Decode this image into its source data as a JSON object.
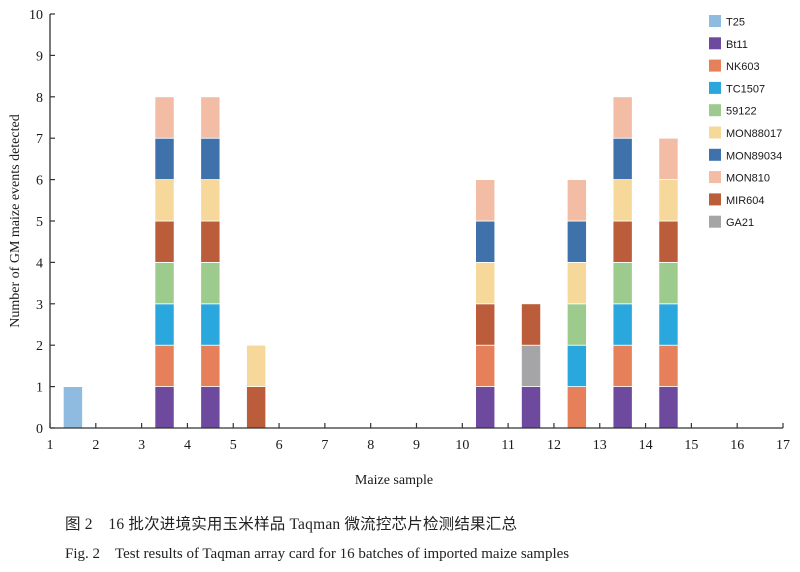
{
  "chart_data": {
    "type": "bar",
    "stacked": true,
    "xlabel": "Maize sample",
    "ylabel": "Number of GM maize events detected",
    "xlim": [
      1,
      17
    ],
    "ylim": [
      0,
      10
    ],
    "x_ticks": [
      "1",
      "2",
      "3",
      "4",
      "5",
      "6",
      "7",
      "8",
      "9",
      "10",
      "11",
      "12",
      "13",
      "14",
      "15",
      "16",
      "17"
    ],
    "y_ticks": [
      "0",
      "1",
      "2",
      "3",
      "4",
      "5",
      "6",
      "7",
      "8",
      "9",
      "10"
    ],
    "categories": [
      "1",
      "2",
      "3",
      "4",
      "5",
      "6",
      "7",
      "8",
      "9",
      "10",
      "11",
      "12",
      "13",
      "14",
      "15",
      "16"
    ],
    "legend_position": "top-right",
    "grid": false,
    "series": [
      {
        "name": "T25",
        "color": "#8fbbe0",
        "values": [
          1,
          0,
          0,
          0,
          0,
          0,
          0,
          0,
          0,
          0,
          0,
          0,
          0,
          0,
          0,
          0
        ]
      },
      {
        "name": "Bt11",
        "color": "#6d4a9e",
        "values": [
          0,
          0,
          1,
          1,
          0,
          0,
          0,
          0,
          0,
          1,
          1,
          0,
          1,
          1,
          0,
          0
        ]
      },
      {
        "name": "NK603",
        "color": "#e5805a",
        "values": [
          0,
          0,
          1,
          1,
          0,
          0,
          0,
          0,
          0,
          1,
          0,
          1,
          1,
          1,
          0,
          0
        ]
      },
      {
        "name": "TC1507",
        "color": "#2aa7dc",
        "values": [
          0,
          0,
          1,
          1,
          0,
          0,
          0,
          0,
          0,
          0,
          0,
          1,
          1,
          1,
          0,
          0
        ]
      },
      {
        "name": "59122",
        "color": "#9dcb8d",
        "values": [
          0,
          0,
          1,
          1,
          0,
          0,
          0,
          0,
          0,
          0,
          0,
          1,
          1,
          1,
          0,
          0
        ]
      },
      {
        "name": "MON88017",
        "color": "#f6d99a",
        "values": [
          0,
          0,
          1,
          1,
          1,
          0,
          0,
          0,
          0,
          1,
          0,
          1,
          1,
          1,
          0,
          0
        ]
      },
      {
        "name": "MON89034",
        "color": "#3f72aa",
        "values": [
          0,
          0,
          1,
          1,
          0,
          0,
          0,
          0,
          0,
          1,
          0,
          1,
          1,
          0,
          0,
          0
        ]
      },
      {
        "name": "MON810",
        "color": "#f2bca5",
        "values": [
          0,
          0,
          1,
          1,
          0,
          0,
          0,
          0,
          0,
          1,
          0,
          1,
          1,
          1,
          0,
          0
        ]
      },
      {
        "name": "MIR604",
        "color": "#bb5d3a",
        "values": [
          0,
          0,
          1,
          1,
          1,
          0,
          0,
          0,
          0,
          1,
          1,
          0,
          1,
          1,
          0,
          0
        ]
      },
      {
        "name": "GA21",
        "color": "#a5a5a8",
        "values": [
          0,
          0,
          0,
          0,
          0,
          0,
          0,
          0,
          0,
          0,
          1,
          0,
          0,
          0,
          0,
          0
        ]
      }
    ],
    "stacks": [
      [
        "T25"
      ],
      [],
      [
        "Bt11",
        "NK603",
        "TC1507",
        "59122",
        "MIR604",
        "MON88017",
        "MON89034",
        "MON810"
      ],
      [
        "Bt11",
        "NK603",
        "TC1507",
        "59122",
        "MIR604",
        "MON88017",
        "MON89034",
        "MON810"
      ],
      [
        "MIR604",
        "MON88017"
      ],
      [],
      [],
      [],
      [],
      [
        "Bt11",
        "NK603",
        "MIR604",
        "MON88017",
        "MON89034",
        "MON810"
      ],
      [
        "Bt11",
        "GA21",
        "MIR604"
      ],
      [
        "NK603",
        "TC1507",
        "59122",
        "MON88017",
        "MON89034",
        "MON810"
      ],
      [
        "Bt11",
        "NK603",
        "TC1507",
        "59122",
        "MIR604",
        "MON88017",
        "MON89034",
        "MON810"
      ],
      [
        "Bt11",
        "NK603",
        "TC1507",
        "59122",
        "MIR604",
        "MON88017",
        "MON810"
      ],
      [],
      []
    ]
  },
  "caption": {
    "cn": "图 2　16 批次进境实用玉米样品 Taqman 微流控芯片检测结果汇总",
    "en": "Fig. 2　Test results of Taqman array card for 16 batches of imported maize samples"
  }
}
